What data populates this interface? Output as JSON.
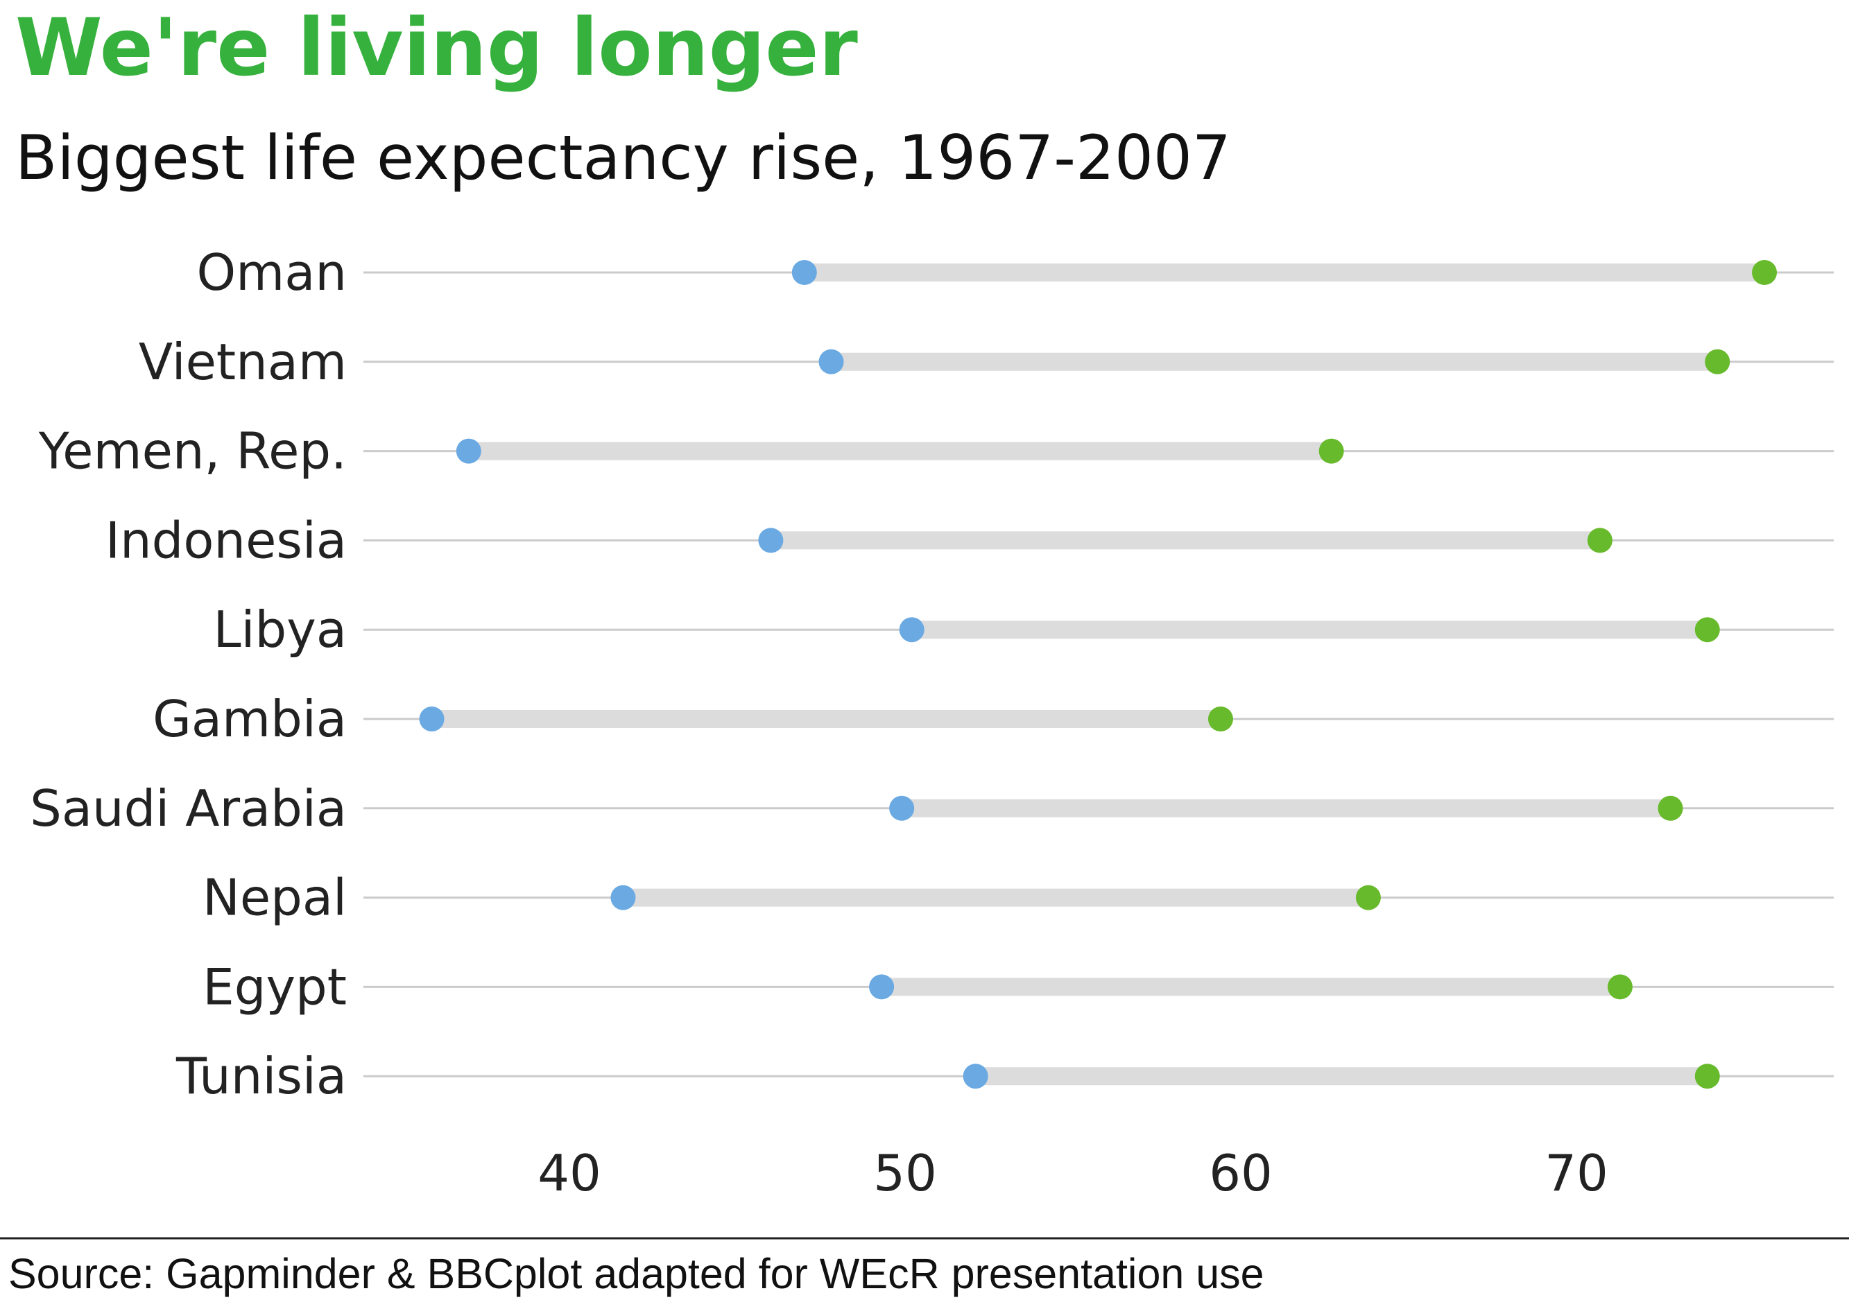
{
  "title": "We're living longer",
  "subtitle": "Biggest life expectancy rise, 1967-2007",
  "source": "Source: Gapminder & BBCplot adapted for WEcR presentation use",
  "colors": {
    "title": "#37b13d",
    "start_point": "#6aa9e2",
    "end_point": "#67ba2b",
    "bar": "#dcdcdc",
    "gridline": "#cbcbcb",
    "source_rule": "#222222"
  },
  "chart_data": {
    "type": "dumbbell",
    "title": "We're living longer",
    "subtitle": "Biggest life expectancy rise, 1967-2007",
    "xlabel": "",
    "ylabel": "",
    "xlim": [
      33.9,
      77.7
    ],
    "xticks": [
      40,
      50,
      60,
      70
    ],
    "grid": "horizontal",
    "legend": "none",
    "categories": [
      "Oman",
      "Vietnam",
      "Yemen, Rep.",
      "Indonesia",
      "Libya",
      "Gambia",
      "Saudi Arabia",
      "Nepal",
      "Egypt",
      "Tunisia"
    ],
    "start_values": [
      47.0,
      47.8,
      37.0,
      46.0,
      50.2,
      35.9,
      49.9,
      41.6,
      49.3,
      52.1
    ],
    "end_values": [
      75.6,
      74.2,
      62.7,
      70.7,
      73.9,
      59.4,
      72.8,
      63.8,
      71.3,
      73.9
    ]
  }
}
